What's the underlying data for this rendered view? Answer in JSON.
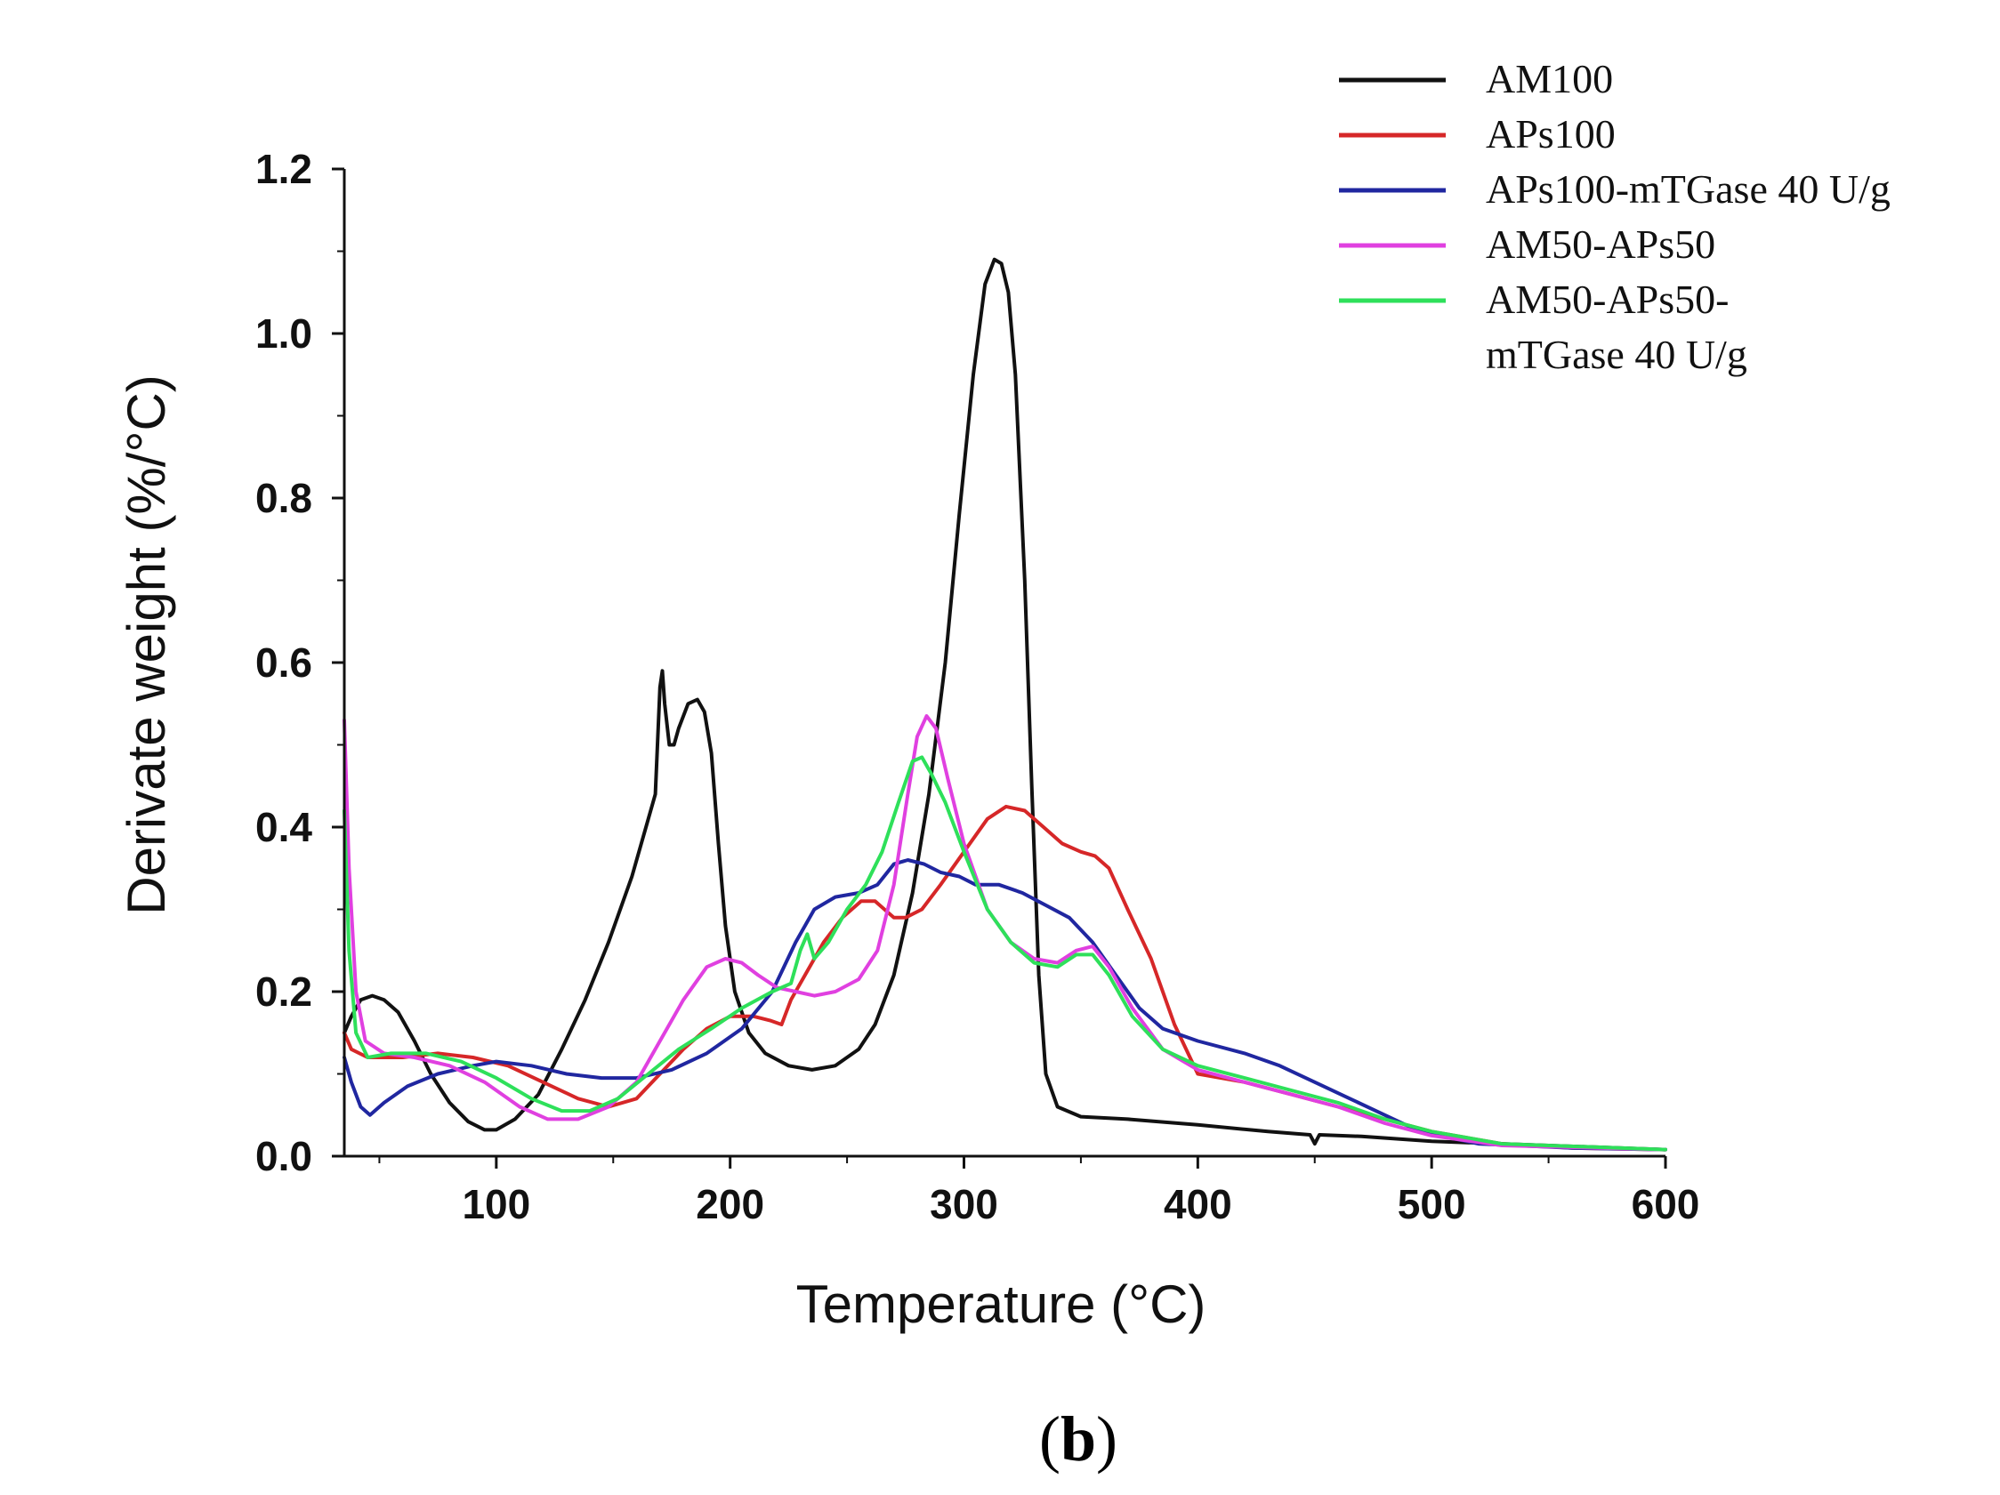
{
  "chart_data": {
    "type": "line",
    "xlabel": "Temperature (°C)",
    "ylabel": "Derivate weight (%/°C)",
    "xlim": [
      35,
      600
    ],
    "ylim": [
      0,
      1.2
    ],
    "xticks": [
      100,
      200,
      300,
      400,
      500,
      600
    ],
    "yticks": [
      0.0,
      0.2,
      0.4,
      0.6,
      0.8,
      1.0,
      1.2
    ],
    "xtick_labels": [
      "100",
      "200",
      "300",
      "400",
      "500",
      "600"
    ],
    "ytick_labels": [
      "0.0",
      "0.2",
      "0.4",
      "0.6",
      "0.8",
      "1.0",
      "1.2"
    ],
    "legend_position": "top-right",
    "panel_label": {
      "open": "(",
      "letter": "b",
      "close": ")"
    },
    "series": [
      {
        "name": "AM100",
        "legend_lines": [
          "AM100"
        ],
        "color": "#111111",
        "points": [
          [
            35,
            0.15
          ],
          [
            38,
            0.17
          ],
          [
            42,
            0.19
          ],
          [
            47,
            0.195
          ],
          [
            52,
            0.19
          ],
          [
            58,
            0.175
          ],
          [
            65,
            0.14
          ],
          [
            72,
            0.1
          ],
          [
            80,
            0.065
          ],
          [
            88,
            0.042
          ],
          [
            95,
            0.032
          ],
          [
            100,
            0.032
          ],
          [
            108,
            0.045
          ],
          [
            118,
            0.075
          ],
          [
            128,
            0.13
          ],
          [
            138,
            0.19
          ],
          [
            148,
            0.26
          ],
          [
            158,
            0.34
          ],
          [
            165,
            0.41
          ],
          [
            168,
            0.44
          ],
          [
            170,
            0.57
          ],
          [
            171,
            0.59
          ],
          [
            172,
            0.55
          ],
          [
            174,
            0.5
          ],
          [
            176,
            0.5
          ],
          [
            178,
            0.52
          ],
          [
            182,
            0.55
          ],
          [
            186,
            0.555
          ],
          [
            189,
            0.54
          ],
          [
            192,
            0.49
          ],
          [
            195,
            0.38
          ],
          [
            198,
            0.28
          ],
          [
            202,
            0.2
          ],
          [
            208,
            0.15
          ],
          [
            215,
            0.125
          ],
          [
            225,
            0.11
          ],
          [
            235,
            0.105
          ],
          [
            245,
            0.11
          ],
          [
            255,
            0.13
          ],
          [
            262,
            0.16
          ],
          [
            270,
            0.22
          ],
          [
            278,
            0.32
          ],
          [
            285,
            0.44
          ],
          [
            292,
            0.6
          ],
          [
            298,
            0.78
          ],
          [
            304,
            0.95
          ],
          [
            309,
            1.06
          ],
          [
            313,
            1.09
          ],
          [
            316,
            1.085
          ],
          [
            319,
            1.05
          ],
          [
            322,
            0.95
          ],
          [
            326,
            0.7
          ],
          [
            329,
            0.45
          ],
          [
            332,
            0.22
          ],
          [
            335,
            0.1
          ],
          [
            340,
            0.06
          ],
          [
            350,
            0.048
          ],
          [
            370,
            0.045
          ],
          [
            400,
            0.038
          ],
          [
            430,
            0.03
          ],
          [
            448,
            0.026
          ],
          [
            450,
            0.015
          ],
          [
            452,
            0.026
          ],
          [
            470,
            0.024
          ],
          [
            500,
            0.018
          ],
          [
            550,
            0.013
          ],
          [
            600,
            0.008
          ]
        ]
      },
      {
        "name": "APs100",
        "legend_lines": [
          "APs100"
        ],
        "color": "#d62728",
        "points": [
          [
            35,
            0.15
          ],
          [
            38,
            0.13
          ],
          [
            45,
            0.12
          ],
          [
            60,
            0.12
          ],
          [
            75,
            0.125
          ],
          [
            90,
            0.12
          ],
          [
            105,
            0.11
          ],
          [
            120,
            0.09
          ],
          [
            135,
            0.07
          ],
          [
            148,
            0.06
          ],
          [
            160,
            0.07
          ],
          [
            170,
            0.1
          ],
          [
            180,
            0.13
          ],
          [
            190,
            0.155
          ],
          [
            200,
            0.17
          ],
          [
            210,
            0.17
          ],
          [
            217,
            0.165
          ],
          [
            222,
            0.16
          ],
          [
            226,
            0.19
          ],
          [
            232,
            0.22
          ],
          [
            240,
            0.26
          ],
          [
            248,
            0.29
          ],
          [
            256,
            0.31
          ],
          [
            262,
            0.31
          ],
          [
            266,
            0.3
          ],
          [
            270,
            0.29
          ],
          [
            275,
            0.29
          ],
          [
            282,
            0.3
          ],
          [
            290,
            0.33
          ],
          [
            300,
            0.37
          ],
          [
            310,
            0.41
          ],
          [
            318,
            0.425
          ],
          [
            326,
            0.42
          ],
          [
            334,
            0.4
          ],
          [
            342,
            0.38
          ],
          [
            350,
            0.37
          ],
          [
            356,
            0.365
          ],
          [
            362,
            0.35
          ],
          [
            370,
            0.3
          ],
          [
            380,
            0.24
          ],
          [
            390,
            0.16
          ],
          [
            400,
            0.1
          ],
          [
            420,
            0.09
          ],
          [
            440,
            0.075
          ],
          [
            460,
            0.06
          ],
          [
            480,
            0.045
          ],
          [
            500,
            0.03
          ],
          [
            530,
            0.015
          ],
          [
            560,
            0.01
          ],
          [
            600,
            0.008
          ]
        ]
      },
      {
        "name": "APs100-mTGase 40 U/g",
        "legend_lines": [
          "APs100-mTGase 40 U/g"
        ],
        "color": "#2027a0",
        "points": [
          [
            35,
            0.12
          ],
          [
            38,
            0.09
          ],
          [
            42,
            0.06
          ],
          [
            46,
            0.05
          ],
          [
            52,
            0.065
          ],
          [
            62,
            0.085
          ],
          [
            75,
            0.1
          ],
          [
            90,
            0.11
          ],
          [
            100,
            0.115
          ],
          [
            115,
            0.11
          ],
          [
            130,
            0.1
          ],
          [
            145,
            0.095
          ],
          [
            160,
            0.095
          ],
          [
            175,
            0.105
          ],
          [
            190,
            0.125
          ],
          [
            205,
            0.155
          ],
          [
            218,
            0.2
          ],
          [
            228,
            0.26
          ],
          [
            236,
            0.3
          ],
          [
            245,
            0.315
          ],
          [
            255,
            0.32
          ],
          [
            263,
            0.33
          ],
          [
            270,
            0.355
          ],
          [
            276,
            0.36
          ],
          [
            283,
            0.355
          ],
          [
            290,
            0.345
          ],
          [
            298,
            0.34
          ],
          [
            305,
            0.33
          ],
          [
            315,
            0.33
          ],
          [
            325,
            0.32
          ],
          [
            335,
            0.305
          ],
          [
            345,
            0.29
          ],
          [
            355,
            0.26
          ],
          [
            365,
            0.22
          ],
          [
            375,
            0.18
          ],
          [
            385,
            0.155
          ],
          [
            400,
            0.14
          ],
          [
            420,
            0.125
          ],
          [
            435,
            0.11
          ],
          [
            450,
            0.09
          ],
          [
            465,
            0.07
          ],
          [
            480,
            0.05
          ],
          [
            495,
            0.03
          ],
          [
            520,
            0.015
          ],
          [
            560,
            0.01
          ],
          [
            600,
            0.008
          ]
        ]
      },
      {
        "name": "AM50-APs50",
        "legend_lines": [
          "AM50-APs50"
        ],
        "color": "#e040e0",
        "points": [
          [
            35,
            0.53
          ],
          [
            37,
            0.35
          ],
          [
            40,
            0.2
          ],
          [
            44,
            0.14
          ],
          [
            52,
            0.125
          ],
          [
            65,
            0.12
          ],
          [
            80,
            0.11
          ],
          [
            95,
            0.09
          ],
          [
            110,
            0.06
          ],
          [
            122,
            0.045
          ],
          [
            135,
            0.045
          ],
          [
            148,
            0.06
          ],
          [
            160,
            0.09
          ],
          [
            170,
            0.14
          ],
          [
            180,
            0.19
          ],
          [
            190,
            0.23
          ],
          [
            198,
            0.24
          ],
          [
            205,
            0.235
          ],
          [
            212,
            0.22
          ],
          [
            220,
            0.205
          ],
          [
            228,
            0.2
          ],
          [
            236,
            0.195
          ],
          [
            245,
            0.2
          ],
          [
            255,
            0.215
          ],
          [
            263,
            0.25
          ],
          [
            270,
            0.33
          ],
          [
            276,
            0.44
          ],
          [
            280,
            0.51
          ],
          [
            284,
            0.535
          ],
          [
            288,
            0.52
          ],
          [
            293,
            0.46
          ],
          [
            300,
            0.38
          ],
          [
            310,
            0.3
          ],
          [
            320,
            0.26
          ],
          [
            330,
            0.24
          ],
          [
            340,
            0.235
          ],
          [
            348,
            0.25
          ],
          [
            355,
            0.255
          ],
          [
            362,
            0.23
          ],
          [
            372,
            0.18
          ],
          [
            385,
            0.13
          ],
          [
            400,
            0.105
          ],
          [
            420,
            0.09
          ],
          [
            440,
            0.075
          ],
          [
            460,
            0.06
          ],
          [
            480,
            0.04
          ],
          [
            500,
            0.025
          ],
          [
            530,
            0.013
          ],
          [
            600,
            0.008
          ]
        ]
      },
      {
        "name": "AM50-APs50-mTGase 40 U/g",
        "legend_lines": [
          "AM50-APs50-",
          "mTGase 40 U/g"
        ],
        "color": "#2ee05a",
        "points": [
          [
            35,
            0.42
          ],
          [
            37,
            0.25
          ],
          [
            40,
            0.15
          ],
          [
            45,
            0.12
          ],
          [
            55,
            0.125
          ],
          [
            70,
            0.125
          ],
          [
            85,
            0.115
          ],
          [
            100,
            0.095
          ],
          [
            115,
            0.07
          ],
          [
            128,
            0.055
          ],
          [
            140,
            0.055
          ],
          [
            152,
            0.07
          ],
          [
            165,
            0.1
          ],
          [
            178,
            0.13
          ],
          [
            192,
            0.155
          ],
          [
            205,
            0.18
          ],
          [
            218,
            0.2
          ],
          [
            226,
            0.21
          ],
          [
            230,
            0.25
          ],
          [
            233,
            0.27
          ],
          [
            236,
            0.24
          ],
          [
            242,
            0.26
          ],
          [
            250,
            0.3
          ],
          [
            258,
            0.33
          ],
          [
            265,
            0.37
          ],
          [
            272,
            0.43
          ],
          [
            278,
            0.48
          ],
          [
            282,
            0.485
          ],
          [
            286,
            0.465
          ],
          [
            292,
            0.43
          ],
          [
            300,
            0.37
          ],
          [
            310,
            0.3
          ],
          [
            320,
            0.26
          ],
          [
            330,
            0.235
          ],
          [
            340,
            0.23
          ],
          [
            348,
            0.245
          ],
          [
            355,
            0.245
          ],
          [
            362,
            0.22
          ],
          [
            372,
            0.17
          ],
          [
            385,
            0.13
          ],
          [
            400,
            0.11
          ],
          [
            420,
            0.095
          ],
          [
            440,
            0.08
          ],
          [
            460,
            0.065
          ],
          [
            480,
            0.045
          ],
          [
            500,
            0.03
          ],
          [
            530,
            0.015
          ],
          [
            600,
            0.008
          ]
        ]
      }
    ]
  }
}
